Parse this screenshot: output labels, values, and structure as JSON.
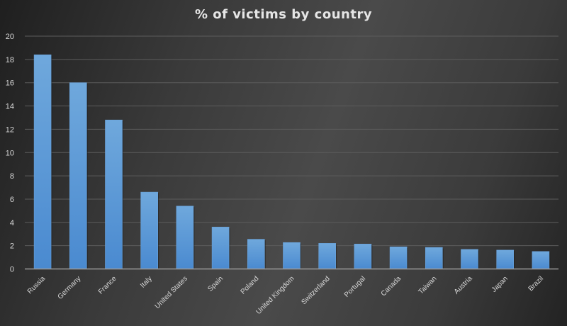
{
  "chart_data": {
    "type": "bar",
    "title": "% of victims by country",
    "xlabel": "",
    "ylabel": "",
    "ylim": [
      0,
      20
    ],
    "yticks": [
      0,
      2,
      4,
      6,
      8,
      10,
      12,
      14,
      16,
      18,
      20
    ],
    "grid": true,
    "legend": "none",
    "categories": [
      "Russia",
      "Germany",
      "France",
      "Italy",
      "United States",
      "Spain",
      "Poland",
      "United Kingdom",
      "Switzerland",
      "Portugal",
      "Canada",
      "Taiwan",
      "Austria",
      "Japan",
      "Brazil"
    ],
    "values": [
      18.4,
      16.0,
      12.8,
      6.6,
      5.4,
      3.6,
      2.55,
      2.27,
      2.2,
      2.14,
      1.9,
      1.85,
      1.68,
      1.62,
      1.5
    ],
    "bar_color": "#5b9bd5"
  }
}
